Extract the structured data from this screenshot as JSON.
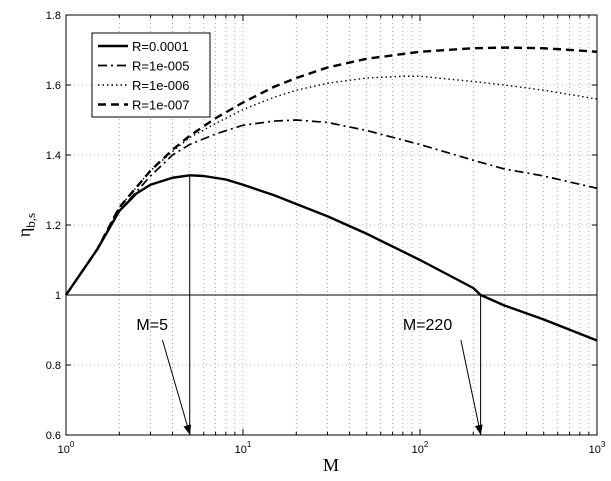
{
  "chart_data": {
    "type": "line",
    "xscale": "log",
    "xlim": [
      1,
      1000
    ],
    "ylim": [
      0.6,
      1.8
    ],
    "xlabel": "M",
    "ylabel": "η",
    "ylabel_sub": "b,s",
    "yticks": [
      "0.6",
      "0.8",
      "1",
      "1.2",
      "1.4",
      "1.6",
      "1.8"
    ],
    "xticks": [
      {
        "base": "10",
        "exp": "0"
      },
      {
        "base": "10",
        "exp": "1"
      },
      {
        "base": "10",
        "exp": "2"
      },
      {
        "base": "10",
        "exp": "3"
      }
    ],
    "grid": true,
    "legend_position": "top-left",
    "series": [
      {
        "name": "R=0.0001",
        "style": "solid",
        "x": [
          1,
          1.5,
          2,
          2.5,
          3,
          4,
          5,
          6,
          8,
          10,
          15,
          20,
          30,
          50,
          100,
          200,
          220,
          300,
          500,
          1000
        ],
        "y": [
          1.0,
          1.13,
          1.24,
          1.29,
          1.315,
          1.335,
          1.342,
          1.34,
          1.33,
          1.315,
          1.285,
          1.26,
          1.225,
          1.175,
          1.1,
          1.02,
          1.0,
          0.97,
          0.93,
          0.87
        ]
      },
      {
        "name": "R=1e-005",
        "style": "dashdot",
        "x": [
          1,
          1.5,
          2,
          3,
          4,
          5,
          7,
          10,
          15,
          20,
          30,
          50,
          100,
          200,
          300,
          500,
          1000
        ],
        "y": [
          1.0,
          1.13,
          1.24,
          1.34,
          1.4,
          1.43,
          1.46,
          1.485,
          1.497,
          1.5,
          1.493,
          1.47,
          1.43,
          1.385,
          1.36,
          1.34,
          1.305
        ]
      },
      {
        "name": "R=1e-006",
        "style": "dotted",
        "x": [
          1,
          1.5,
          2,
          3,
          4,
          5,
          7,
          10,
          15,
          20,
          30,
          50,
          80,
          100,
          200,
          300,
          500,
          1000
        ],
        "y": [
          1.0,
          1.13,
          1.25,
          1.355,
          1.41,
          1.45,
          1.49,
          1.53,
          1.565,
          1.585,
          1.605,
          1.62,
          1.625,
          1.625,
          1.61,
          1.6,
          1.585,
          1.56
        ]
      },
      {
        "name": "R=1e-007",
        "style": "dashed",
        "x": [
          1,
          1.5,
          2,
          3,
          4,
          5,
          7,
          10,
          15,
          20,
          30,
          50,
          100,
          200,
          300,
          500,
          1000
        ],
        "y": [
          1.0,
          1.13,
          1.25,
          1.355,
          1.415,
          1.455,
          1.505,
          1.55,
          1.595,
          1.62,
          1.65,
          1.675,
          1.695,
          1.705,
          1.707,
          1.705,
          1.695
        ]
      }
    ],
    "reference_line": {
      "y": 1.0
    },
    "annotations": [
      {
        "text": "M=5",
        "x": 5,
        "y_point": 1.342,
        "text_pos": [
          2.5,
          0.9
        ]
      },
      {
        "text": "M=220",
        "x": 220,
        "y_point": 1.0,
        "text_pos": [
          80,
          0.9
        ]
      }
    ]
  }
}
